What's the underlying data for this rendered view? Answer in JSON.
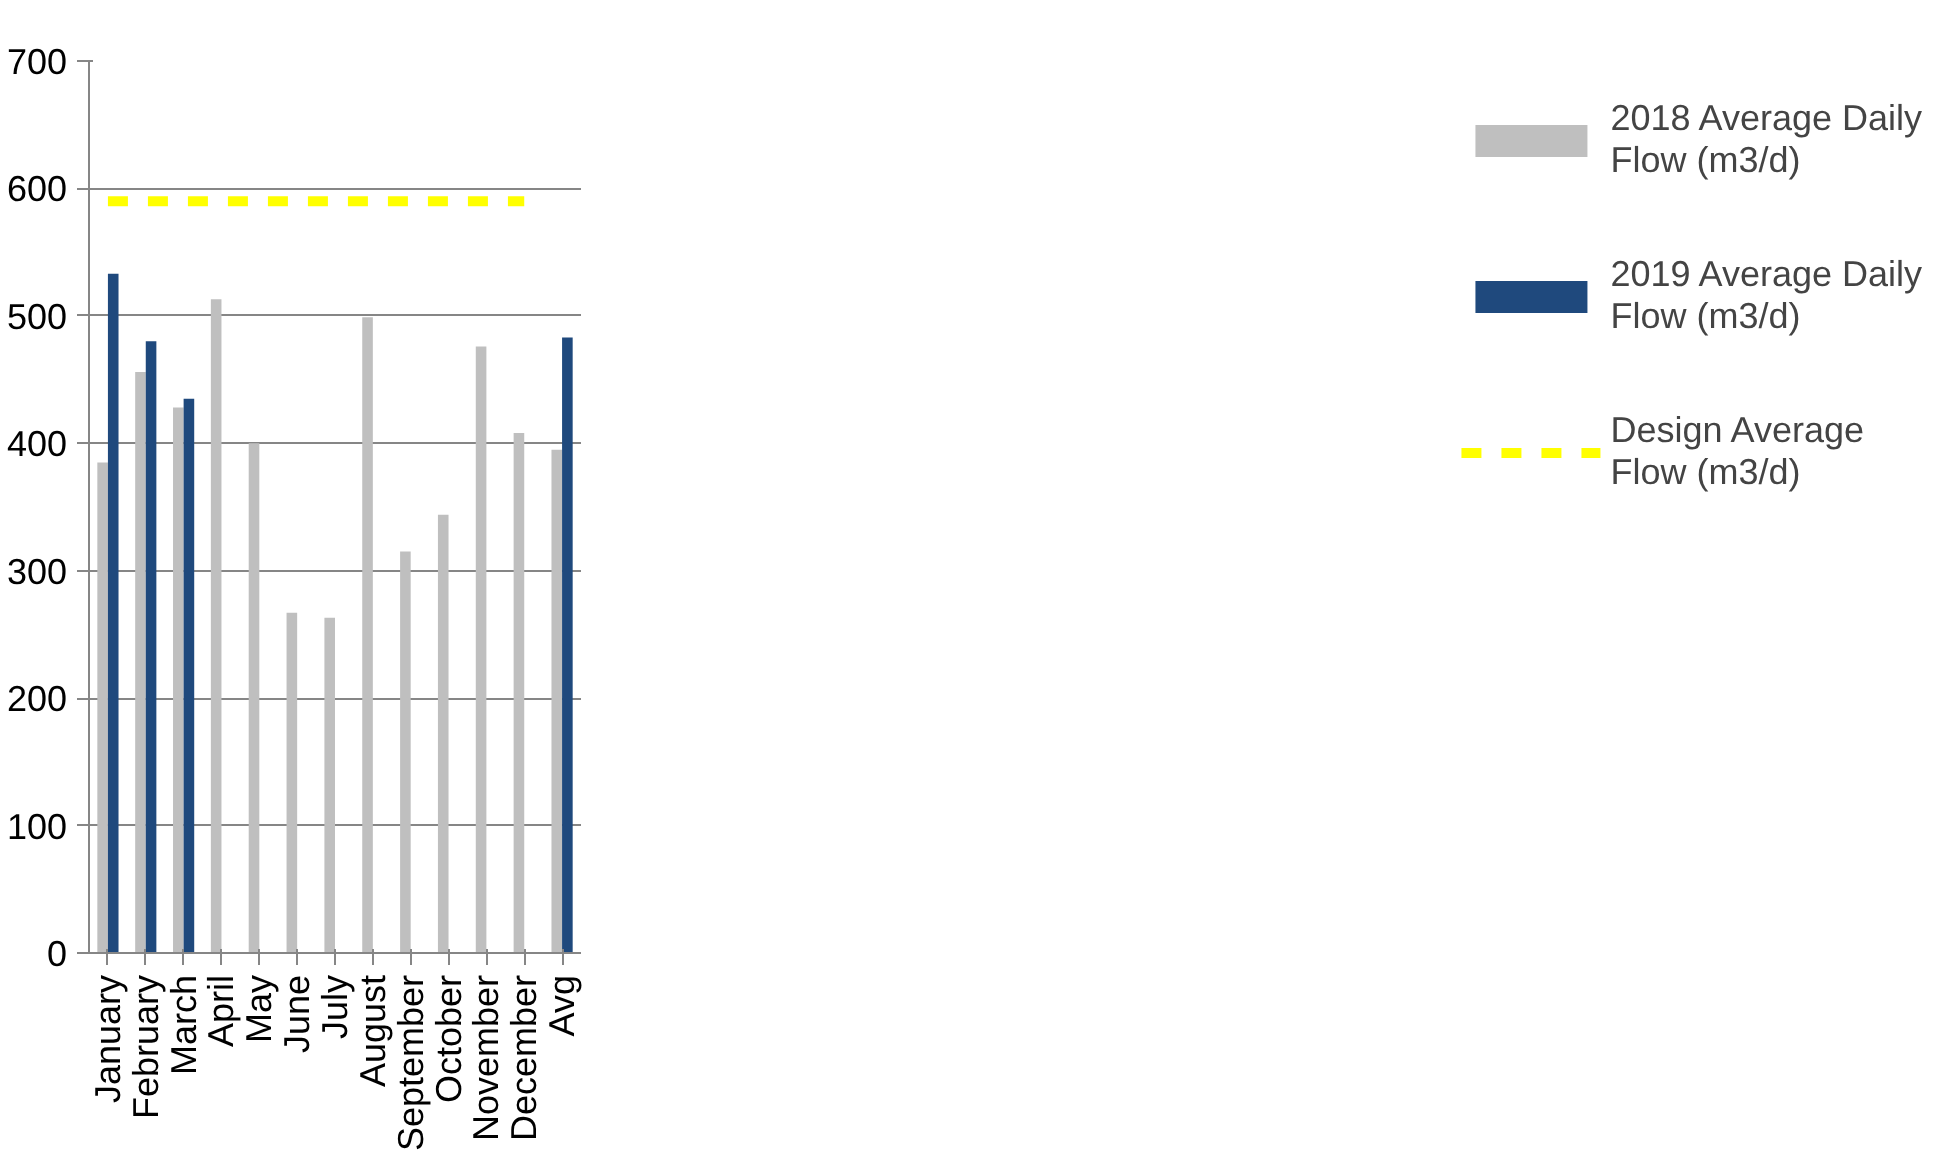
{
  "chart_data": {
    "type": "bar",
    "categories": [
      "January",
      "February",
      "March",
      "April",
      "May",
      "June",
      "July",
      "August",
      "September",
      "October",
      "November",
      "December",
      "Avg"
    ],
    "series": [
      {
        "name": "2018 Average Daily Flow (m3/d)",
        "color": "#bfbfbf",
        "values": [
          385,
          456,
          428,
          513,
          400,
          267,
          263,
          499,
          315,
          344,
          476,
          408,
          395
        ]
      },
      {
        "name": "2019 Average Daily Flow (m3/d)",
        "color": "#1f497d",
        "values": [
          533,
          480,
          435,
          null,
          null,
          null,
          null,
          null,
          null,
          null,
          null,
          null,
          483
        ]
      },
      {
        "name": "Design Average Flow (m3/d)",
        "color": "#ffff00",
        "type": "line",
        "line_style": "dashed",
        "values": [
          590,
          590,
          590,
          590,
          590,
          590,
          590,
          590,
          590,
          590,
          590,
          590,
          null
        ]
      }
    ],
    "ylim": [
      0,
      700
    ],
    "yticks": [
      0,
      100,
      200,
      300,
      400,
      500,
      600,
      700
    ],
    "grid": "y",
    "legend": "right"
  }
}
